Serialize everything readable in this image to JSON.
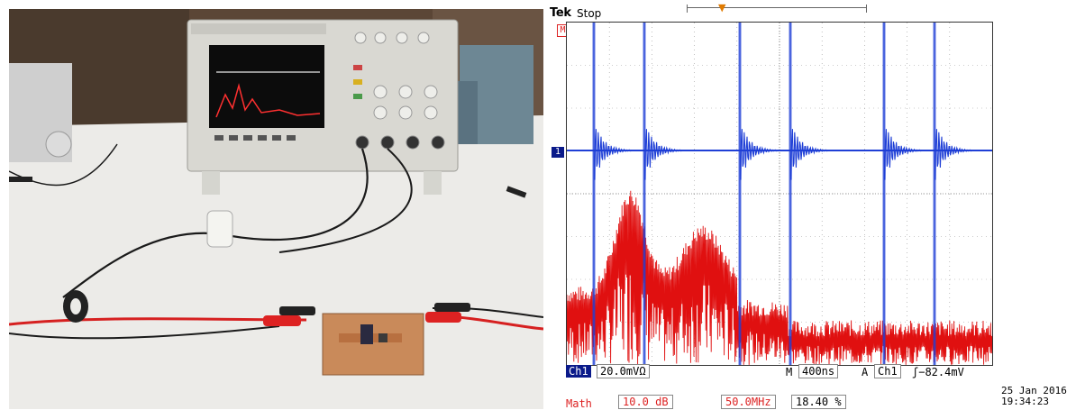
{
  "photo": {
    "subject": "oscilloscope-on-bench-with-circuit-board"
  },
  "scope": {
    "brand": "Tek",
    "status": "Stop",
    "math_marker": "M",
    "ch1_marker": "1",
    "ch1_label": "Ch1",
    "ch1_scale": "20.0mVΩ",
    "timebase_prefix": "M",
    "timebase": "400ns",
    "trigger_prefix": "A",
    "trigger_source": "Ch1",
    "trigger_level": "ʃ−82.4mV",
    "math_label": "Math",
    "math_scale": "10.0 dB",
    "math_freq": "50.0MHz",
    "math_position": "18.40 %",
    "date": "25 Jan  2016",
    "time": "19:34:23",
    "colors": {
      "ch1": "#1f3fd6",
      "math": "#e01010",
      "trigger": "#e07a00"
    }
  }
}
